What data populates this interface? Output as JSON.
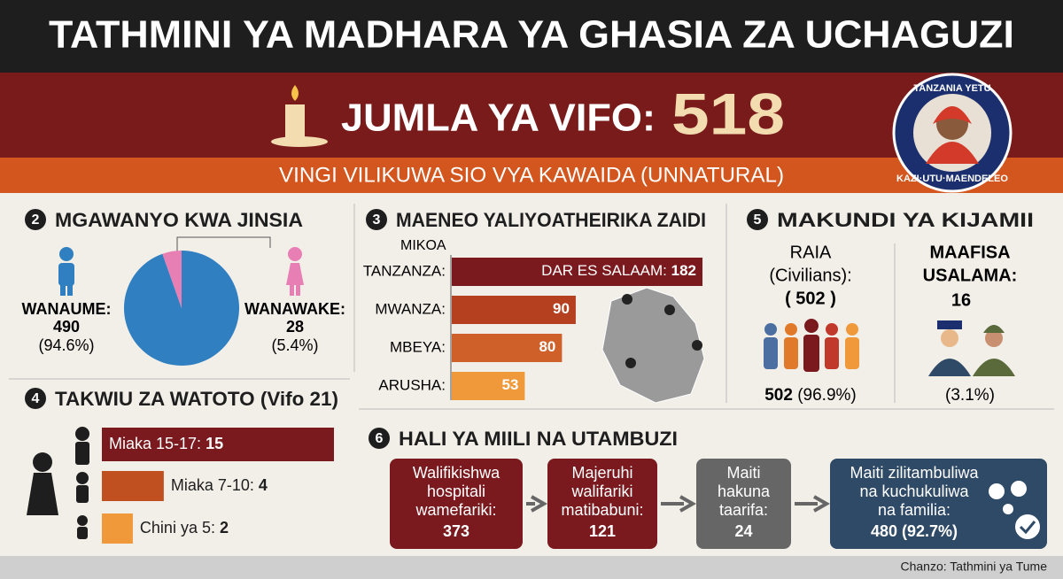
{
  "header": {
    "title": "TATHMINI YA MADHARA YA GHASIA ZA UCHAGUZI",
    "total_label": "JUMLA YA VIFO:",
    "total": 518,
    "subtitle": "VINGI VILIKUWA SIO VYA KAWAIDA (UNNATURAL)"
  },
  "badge": {
    "top": "TANZANIA YETU",
    "bottom": "KAZI·UTU·MAENDELEO"
  },
  "gender": {
    "number": "2",
    "title": "MGAWANYO KWA JINSIA",
    "men": {
      "label": "WANAUME:",
      "value": 490,
      "share": "(94.6%)",
      "color": "#2f7fc1"
    },
    "women": {
      "label": "WANAWAKE:",
      "value": 28,
      "share": "(5.4%)",
      "color": "#e87fb4"
    }
  },
  "regions": {
    "number": "3",
    "title": "MAENEO YALIYOATHEIRIKA ZAIDI",
    "axis_label": "MIKOA",
    "items": [
      {
        "label": "TANZANZA:",
        "inner": "DAR ES SALAAM:",
        "value": 182,
        "color": "#7a1a1e"
      },
      {
        "label": "MWANZA:",
        "value": 90,
        "color": "#b4401f"
      },
      {
        "label": "MBEYA:",
        "value": 80,
        "color": "#d0602a"
      },
      {
        "label": "ARUSHA:",
        "value": 53,
        "color": "#f0993a"
      }
    ]
  },
  "groups": {
    "number": "5",
    "title": "MAKUNDI YA KIJAMII",
    "civilians": {
      "title": "RAIA",
      "subtitle": "(Civilians):",
      "count_label": "( 502 )",
      "value": 502,
      "share": "(96.9%)"
    },
    "security": {
      "title": "MAAFISA",
      "subtitle": "USALAMA:",
      "value": 16,
      "share": "(3.1%)"
    }
  },
  "children": {
    "number": "4",
    "title": "TAKWIU ZA WATOTO (Vifo 21)",
    "items": [
      {
        "label": "Miaka 15-17:",
        "value": 15,
        "color": "#7a1a1e"
      },
      {
        "label": "Miaka 7-10:",
        "value": 4,
        "color": "#c0501f"
      },
      {
        "label": "Chini ya 5:",
        "value": 2,
        "color": "#f0993a"
      }
    ]
  },
  "status": {
    "number": "6",
    "title": "HALI YA MIILI NA UTAMBUZI",
    "steps": [
      {
        "lines": [
          "Walifikishwa",
          "hospitali",
          "wamefariki:"
        ],
        "value": 373,
        "color": "#7a1a1e"
      },
      {
        "lines": [
          "Majeruhi",
          "walifariki",
          "matibabuni:"
        ],
        "value": 121,
        "color": "#7a1a1e"
      },
      {
        "lines": [
          "Maiti",
          "hakuna",
          "taarifa:"
        ],
        "value": 24,
        "color": "#666666"
      },
      {
        "lines": [
          "Maiti zilitambuliwa",
          "na kuchukuliwa",
          "na familia:"
        ],
        "value": 480,
        "share": "(92.7%)",
        "color": "#2f4a66"
      }
    ]
  },
  "source": "Chanzo: Tathmini ya Tume"
}
